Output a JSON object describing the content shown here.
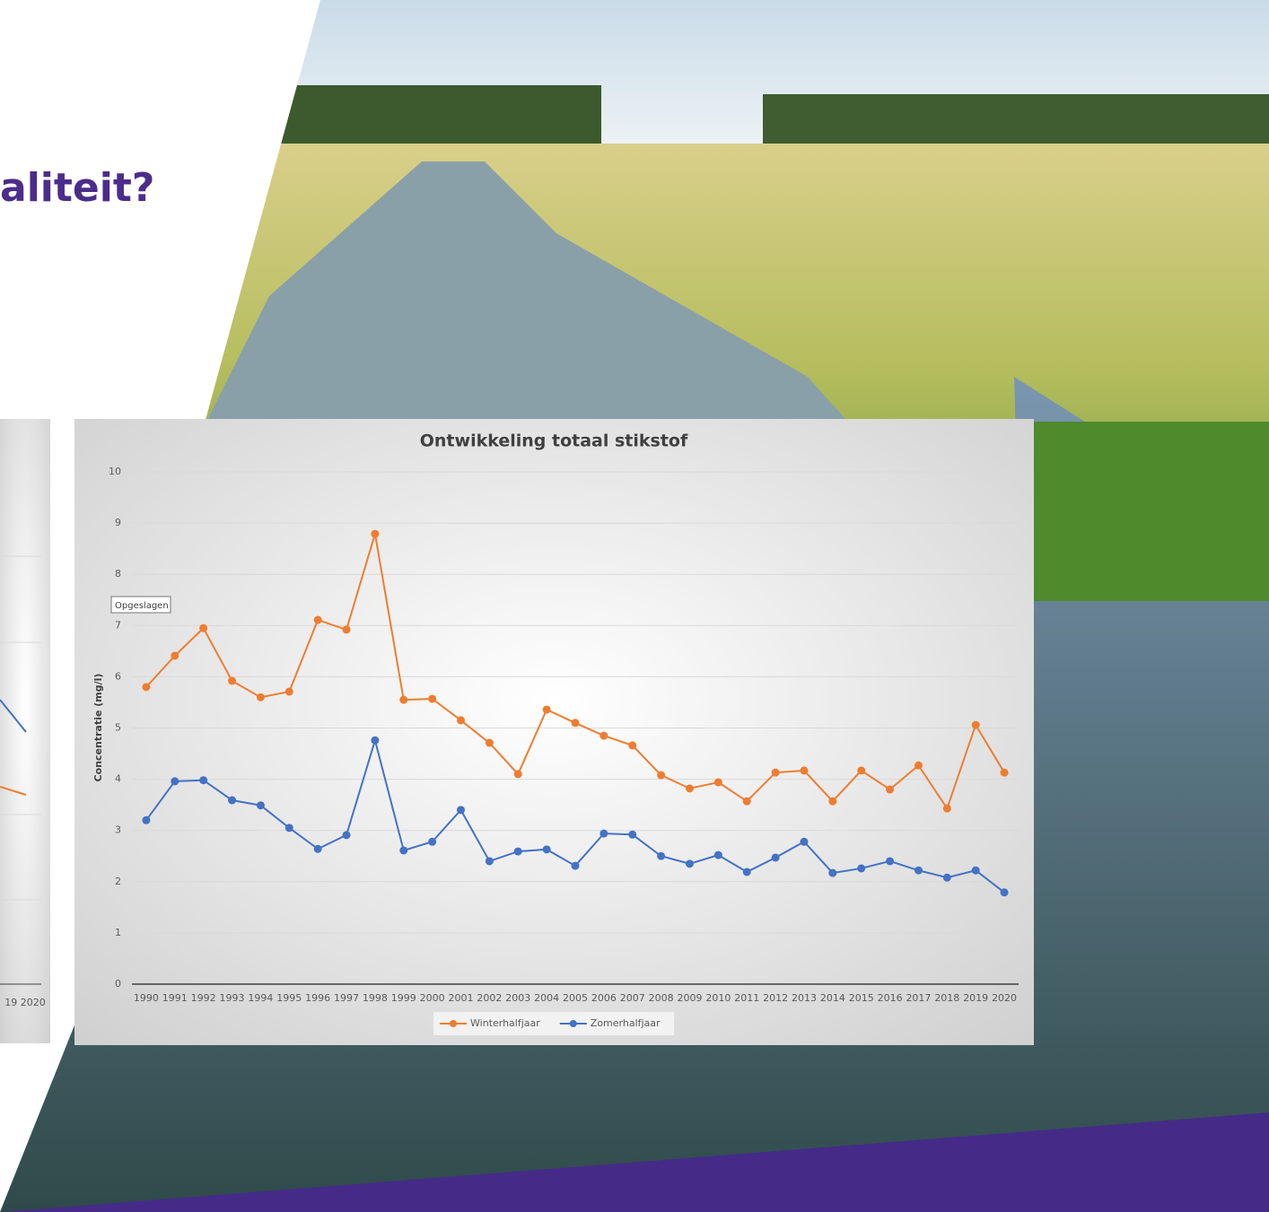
{
  "heading": "aliteit?",
  "tooltip": "Opgeslagen",
  "left_chart": {
    "x_label": "19 2020"
  },
  "chart_data": {
    "type": "line",
    "title": "Ontwikkeling totaal stikstof",
    "y_label": "Concentratie (mg/l)",
    "categories": [
      "1990",
      "1991",
      "1992",
      "1993",
      "1994",
      "1995",
      "1996",
      "1997",
      "1998",
      "1999",
      "2000",
      "2001",
      "2002",
      "2003",
      "2004",
      "2005",
      "2006",
      "2007",
      "2008",
      "2009",
      "2010",
      "2011",
      "2012",
      "2013",
      "2014",
      "2015",
      "2016",
      "2017",
      "2018",
      "2019",
      "2020"
    ],
    "series": [
      {
        "name": "Winterhalfjaar",
        "color": "#ed7d31",
        "values": [
          5.8,
          6.41,
          6.95,
          5.92,
          5.6,
          5.71,
          7.11,
          6.92,
          8.79,
          5.55,
          5.57,
          5.15,
          4.71,
          4.1,
          5.36,
          5.1,
          4.85,
          4.66,
          4.08,
          3.82,
          3.94,
          3.57,
          4.13,
          4.17,
          3.57,
          4.17,
          3.8,
          4.27,
          3.43,
          5.06,
          4.13
        ]
      },
      {
        "name": "Zomerhalfjaar",
        "color": "#4472c4",
        "values": [
          3.2,
          3.96,
          3.98,
          3.59,
          3.49,
          3.05,
          2.64,
          2.91,
          4.76,
          2.61,
          2.78,
          3.4,
          2.4,
          2.59,
          2.63,
          2.31,
          2.94,
          2.92,
          2.5,
          2.35,
          2.52,
          2.19,
          2.47,
          2.78,
          2.17,
          2.26,
          2.4,
          2.22,
          2.08,
          2.22,
          1.79
        ]
      }
    ],
    "ylim": [
      0,
      10
    ],
    "yticks": [
      0,
      1,
      2,
      3,
      4,
      5,
      6,
      7,
      8,
      9,
      10
    ],
    "grid": true,
    "legend": "bottom"
  }
}
